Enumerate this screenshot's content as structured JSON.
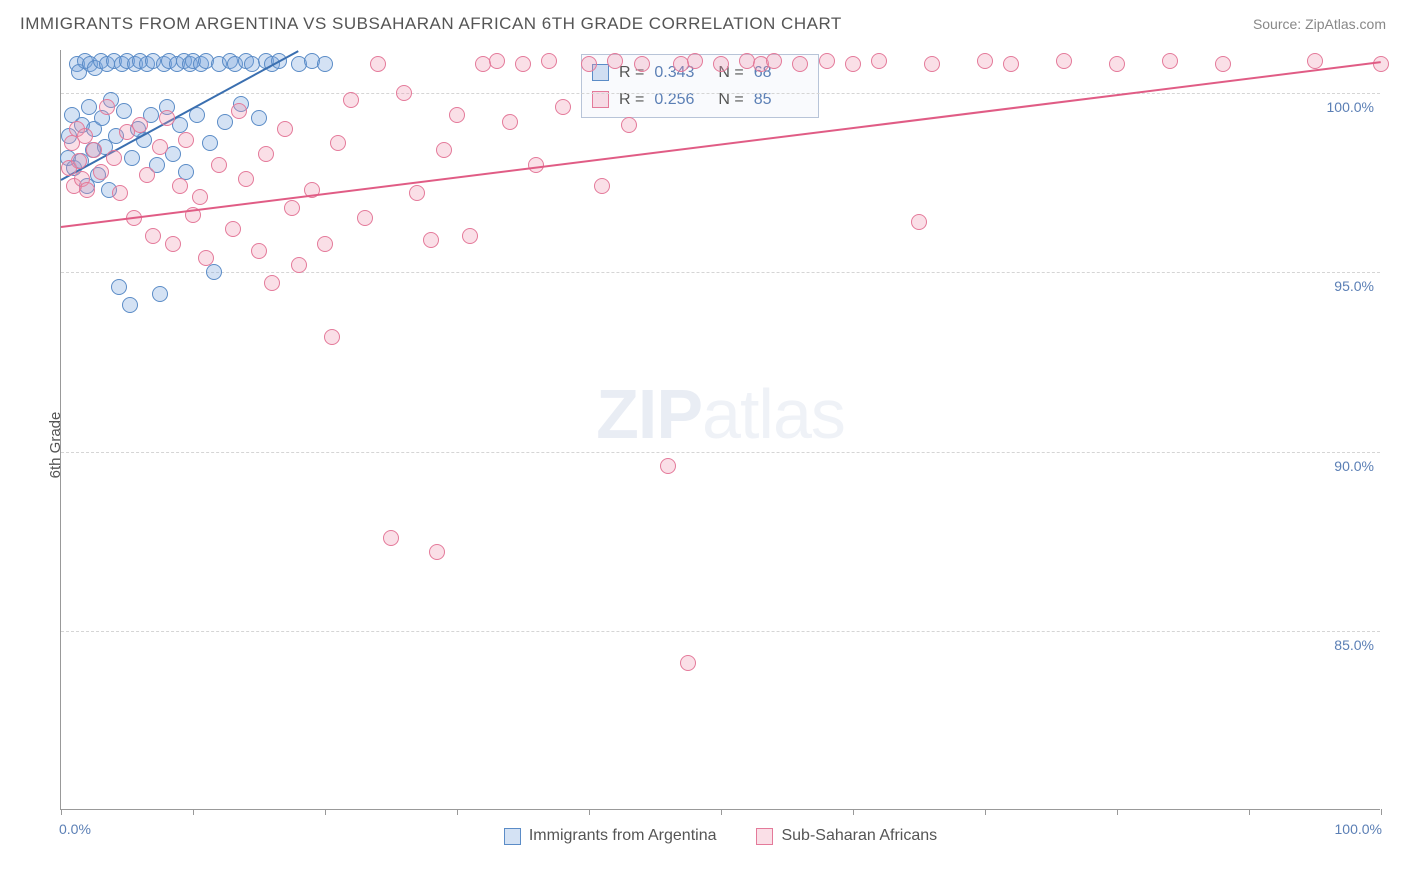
{
  "header": {
    "title": "IMMIGRANTS FROM ARGENTINA VS SUBSAHARAN AFRICAN 6TH GRADE CORRELATION CHART",
    "source_prefix": "Source: ",
    "source_name": "ZipAtlas.com"
  },
  "watermark": {
    "zip": "ZIP",
    "atlas": "atlas"
  },
  "chart": {
    "type": "scatter",
    "ylabel": "6th Grade",
    "xlim": [
      0,
      100
    ],
    "ylim": [
      80,
      101.2
    ],
    "background_color": "#ffffff",
    "grid_color": "#d5d5d5",
    "axis_color": "#999999",
    "label_color": "#5b7fb5",
    "ytick_values": [
      85.0,
      90.0,
      95.0,
      100.0
    ],
    "ytick_labels": [
      "85.0%",
      "90.0%",
      "95.0%",
      "100.0%"
    ],
    "xtick_values": [
      0,
      10,
      20,
      30,
      40,
      50,
      60,
      70,
      80,
      90,
      100
    ],
    "x_min_label": "0.0%",
    "x_max_label": "100.0%",
    "marker_radius": 8,
    "marker_border_width": 1.3,
    "line_width": 2,
    "series": [
      {
        "name": "Immigrants from Argentina",
        "fill": "rgba(120,165,220,0.32)",
        "stroke": "#5b8cc7",
        "line_color": "#3a6fb0",
        "R": "0.343",
        "N": "68",
        "trend": {
          "x1": 0,
          "y1": 97.6,
          "x2": 18,
          "y2": 101.2
        },
        "points": [
          [
            0.5,
            98.2
          ],
          [
            0.6,
            98.8
          ],
          [
            0.8,
            99.4
          ],
          [
            1.0,
            97.9
          ],
          [
            1.2,
            100.8
          ],
          [
            1.4,
            100.6
          ],
          [
            1.5,
            98.1
          ],
          [
            1.6,
            99.1
          ],
          [
            1.8,
            100.9
          ],
          [
            2.0,
            97.4
          ],
          [
            2.1,
            99.6
          ],
          [
            2.2,
            100.8
          ],
          [
            2.4,
            98.4
          ],
          [
            2.5,
            99.0
          ],
          [
            2.6,
            100.7
          ],
          [
            2.8,
            97.7
          ],
          [
            3.0,
            100.9
          ],
          [
            3.1,
            99.3
          ],
          [
            3.3,
            98.5
          ],
          [
            3.5,
            100.8
          ],
          [
            3.6,
            97.3
          ],
          [
            3.8,
            99.8
          ],
          [
            4.0,
            100.9
          ],
          [
            4.2,
            98.8
          ],
          [
            4.4,
            94.6
          ],
          [
            4.6,
            100.8
          ],
          [
            4.8,
            99.5
          ],
          [
            5.0,
            100.9
          ],
          [
            5.2,
            94.1
          ],
          [
            5.4,
            98.2
          ],
          [
            5.6,
            100.8
          ],
          [
            5.8,
            99.0
          ],
          [
            6.0,
            100.9
          ],
          [
            6.3,
            98.7
          ],
          [
            6.5,
            100.8
          ],
          [
            6.8,
            99.4
          ],
          [
            7.0,
            100.9
          ],
          [
            7.3,
            98.0
          ],
          [
            7.5,
            94.4
          ],
          [
            7.8,
            100.8
          ],
          [
            8.0,
            99.6
          ],
          [
            8.2,
            100.9
          ],
          [
            8.5,
            98.3
          ],
          [
            8.8,
            100.8
          ],
          [
            9.0,
            99.1
          ],
          [
            9.3,
            100.9
          ],
          [
            9.5,
            97.8
          ],
          [
            9.8,
            100.8
          ],
          [
            10.0,
            100.9
          ],
          [
            10.3,
            99.4
          ],
          [
            10.6,
            100.8
          ],
          [
            11.0,
            100.9
          ],
          [
            11.3,
            98.6
          ],
          [
            11.6,
            95.0
          ],
          [
            12.0,
            100.8
          ],
          [
            12.4,
            99.2
          ],
          [
            12.8,
            100.9
          ],
          [
            13.2,
            100.8
          ],
          [
            13.6,
            99.7
          ],
          [
            14.0,
            100.9
          ],
          [
            14.5,
            100.8
          ],
          [
            15.0,
            99.3
          ],
          [
            15.5,
            100.9
          ],
          [
            16.0,
            100.8
          ],
          [
            16.5,
            100.9
          ],
          [
            18.0,
            100.8
          ],
          [
            19.0,
            100.9
          ],
          [
            20.0,
            100.8
          ]
        ]
      },
      {
        "name": "Sub-Saharan Africans",
        "fill": "rgba(240,150,175,0.30)",
        "stroke": "#e47a9a",
        "line_color": "#e05c85",
        "R": "0.256",
        "N": "85",
        "trend": {
          "x1": 0,
          "y1": 96.3,
          "x2": 100,
          "y2": 100.9
        },
        "points": [
          [
            0.6,
            97.9
          ],
          [
            0.8,
            98.6
          ],
          [
            1.0,
            97.4
          ],
          [
            1.2,
            99.0
          ],
          [
            1.4,
            98.1
          ],
          [
            1.6,
            97.6
          ],
          [
            1.8,
            98.8
          ],
          [
            2.0,
            97.3
          ],
          [
            2.5,
            98.4
          ],
          [
            3.0,
            97.8
          ],
          [
            3.5,
            99.6
          ],
          [
            4.0,
            98.2
          ],
          [
            4.5,
            97.2
          ],
          [
            5.0,
            98.9
          ],
          [
            5.5,
            96.5
          ],
          [
            6.0,
            99.1
          ],
          [
            6.5,
            97.7
          ],
          [
            7.0,
            96.0
          ],
          [
            7.5,
            98.5
          ],
          [
            8.0,
            99.3
          ],
          [
            8.5,
            95.8
          ],
          [
            9.0,
            97.4
          ],
          [
            9.5,
            98.7
          ],
          [
            10.0,
            96.6
          ],
          [
            10.5,
            97.1
          ],
          [
            11.0,
            95.4
          ],
          [
            12.0,
            98.0
          ],
          [
            13.0,
            96.2
          ],
          [
            13.5,
            99.5
          ],
          [
            14.0,
            97.6
          ],
          [
            15.0,
            95.6
          ],
          [
            15.5,
            98.3
          ],
          [
            16.0,
            94.7
          ],
          [
            17.0,
            99.0
          ],
          [
            17.5,
            96.8
          ],
          [
            18.0,
            95.2
          ],
          [
            19.0,
            97.3
          ],
          [
            20.0,
            95.8
          ],
          [
            20.5,
            93.2
          ],
          [
            21.0,
            98.6
          ],
          [
            22.0,
            99.8
          ],
          [
            23.0,
            96.5
          ],
          [
            24.0,
            100.8
          ],
          [
            25.0,
            87.6
          ],
          [
            26.0,
            100.0
          ],
          [
            27.0,
            97.2
          ],
          [
            28.0,
            95.9
          ],
          [
            28.5,
            87.2
          ],
          [
            29.0,
            98.4
          ],
          [
            30.0,
            99.4
          ],
          [
            31.0,
            96.0
          ],
          [
            32.0,
            100.8
          ],
          [
            33.0,
            100.9
          ],
          [
            34.0,
            99.2
          ],
          [
            35.0,
            100.8
          ],
          [
            36.0,
            98.0
          ],
          [
            37.0,
            100.9
          ],
          [
            38.0,
            99.6
          ],
          [
            40.0,
            100.8
          ],
          [
            41.0,
            97.4
          ],
          [
            42.0,
            100.9
          ],
          [
            43.0,
            99.1
          ],
          [
            44.0,
            100.8
          ],
          [
            46.0,
            89.6
          ],
          [
            47.0,
            100.8
          ],
          [
            47.5,
            84.1
          ],
          [
            48.0,
            100.9
          ],
          [
            50.0,
            100.8
          ],
          [
            52.0,
            100.9
          ],
          [
            53.0,
            100.8
          ],
          [
            54.0,
            100.9
          ],
          [
            56.0,
            100.8
          ],
          [
            58.0,
            100.9
          ],
          [
            60.0,
            100.8
          ],
          [
            62.0,
            100.9
          ],
          [
            65.0,
            96.4
          ],
          [
            66.0,
            100.8
          ],
          [
            70.0,
            100.9
          ],
          [
            72.0,
            100.8
          ],
          [
            76.0,
            100.9
          ],
          [
            80.0,
            100.8
          ],
          [
            84.0,
            100.9
          ],
          [
            88.0,
            100.8
          ],
          [
            95.0,
            100.9
          ],
          [
            100.0,
            100.8
          ]
        ]
      }
    ],
    "stats_box": {
      "R_label": "R =",
      "N_label": "N ="
    },
    "bottom_legend": [
      {
        "label": "Immigrants from Argentina",
        "series_idx": 0
      },
      {
        "label": "Sub-Saharan Africans",
        "series_idx": 1
      }
    ]
  }
}
